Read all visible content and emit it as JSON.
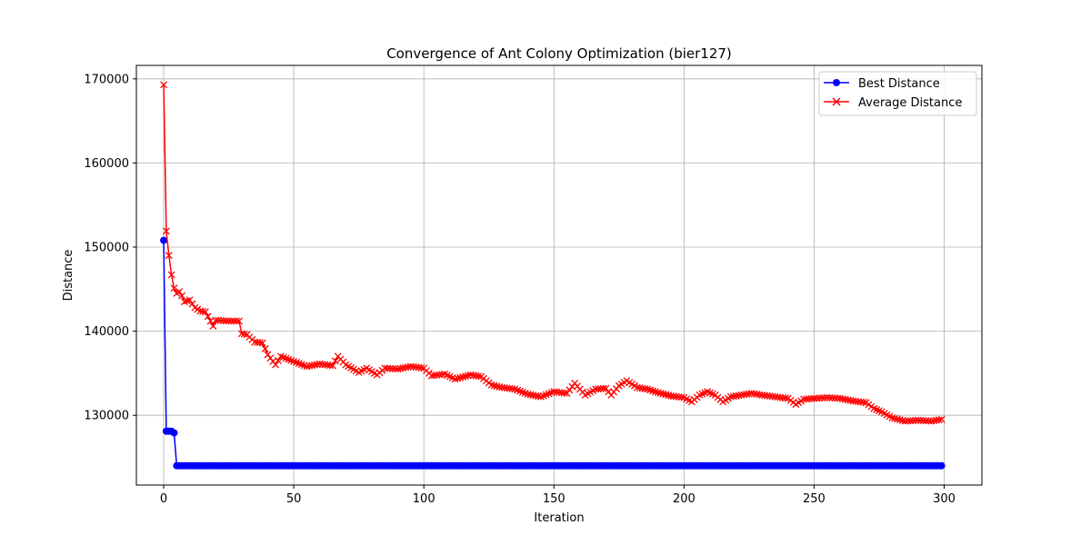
{
  "chart_data": {
    "type": "line",
    "title": "Convergence of Ant Colony Optimization (bier127)",
    "xlabel": "Iteration",
    "ylabel": "Distance",
    "xlim": [
      -10.5,
      314.5
    ],
    "ylim": [
      121700,
      171600
    ],
    "xticks": [
      0,
      50,
      100,
      150,
      200,
      250,
      300
    ],
    "yticks": [
      130000,
      140000,
      150000,
      160000,
      170000
    ],
    "grid": true,
    "legend": "top-right",
    "series": [
      {
        "name": "Best Distance",
        "color": "#0000ff",
        "marker": "circle",
        "points": [
          [
            0,
            150800
          ],
          [
            1,
            128100
          ],
          [
            2,
            128100
          ],
          [
            3,
            128100
          ],
          [
            4,
            127900
          ],
          [
            5,
            124000
          ],
          [
            299,
            124000
          ]
        ]
      },
      {
        "name": "Average Distance",
        "color": "#ff0000",
        "marker": "x",
        "points": [
          [
            0,
            169300
          ],
          [
            1,
            151900
          ],
          [
            2,
            149000
          ],
          [
            3,
            146700
          ],
          [
            4,
            145100
          ],
          [
            5,
            144500
          ],
          [
            6,
            144700
          ],
          [
            7,
            144200
          ],
          [
            8,
            143500
          ],
          [
            10,
            143700
          ],
          [
            12,
            142800
          ],
          [
            14,
            142400
          ],
          [
            16,
            142300
          ],
          [
            18,
            141200
          ],
          [
            19,
            140600
          ],
          [
            20,
            141300
          ],
          [
            25,
            141200
          ],
          [
            29,
            141200
          ],
          [
            30,
            139700
          ],
          [
            32,
            139600
          ],
          [
            35,
            138700
          ],
          [
            38,
            138600
          ],
          [
            40,
            137200
          ],
          [
            43,
            136000
          ],
          [
            45,
            137000
          ],
          [
            50,
            136400
          ],
          [
            55,
            135800
          ],
          [
            60,
            136100
          ],
          [
            65,
            135900
          ],
          [
            67,
            137000
          ],
          [
            70,
            136000
          ],
          [
            75,
            135100
          ],
          [
            78,
            135600
          ],
          [
            82,
            134800
          ],
          [
            85,
            135600
          ],
          [
            90,
            135500
          ],
          [
            95,
            135800
          ],
          [
            100,
            135600
          ],
          [
            103,
            134700
          ],
          [
            108,
            134900
          ],
          [
            112,
            134300
          ],
          [
            118,
            134800
          ],
          [
            122,
            134600
          ],
          [
            126,
            133600
          ],
          [
            130,
            133300
          ],
          [
            135,
            133100
          ],
          [
            140,
            132500
          ],
          [
            145,
            132200
          ],
          [
            150,
            132800
          ],
          [
            155,
            132600
          ],
          [
            158,
            133800
          ],
          [
            162,
            132400
          ],
          [
            166,
            133100
          ],
          [
            170,
            133200
          ],
          [
            172,
            132400
          ],
          [
            175,
            133500
          ],
          [
            178,
            134100
          ],
          [
            182,
            133300
          ],
          [
            186,
            133100
          ],
          [
            190,
            132700
          ],
          [
            195,
            132300
          ],
          [
            200,
            132100
          ],
          [
            203,
            131600
          ],
          [
            206,
            132400
          ],
          [
            209,
            132800
          ],
          [
            212,
            132400
          ],
          [
            215,
            131600
          ],
          [
            218,
            132200
          ],
          [
            222,
            132400
          ],
          [
            226,
            132600
          ],
          [
            230,
            132400
          ],
          [
            235,
            132200
          ],
          [
            240,
            132000
          ],
          [
            243,
            131300
          ],
          [
            246,
            131900
          ],
          [
            250,
            132000
          ],
          [
            255,
            132100
          ],
          [
            260,
            132000
          ],
          [
            265,
            131700
          ],
          [
            270,
            131500
          ],
          [
            273,
            130800
          ],
          [
            276,
            130400
          ],
          [
            280,
            129700
          ],
          [
            285,
            129300
          ],
          [
            290,
            129400
          ],
          [
            295,
            129300
          ],
          [
            299,
            129500
          ]
        ]
      }
    ]
  }
}
